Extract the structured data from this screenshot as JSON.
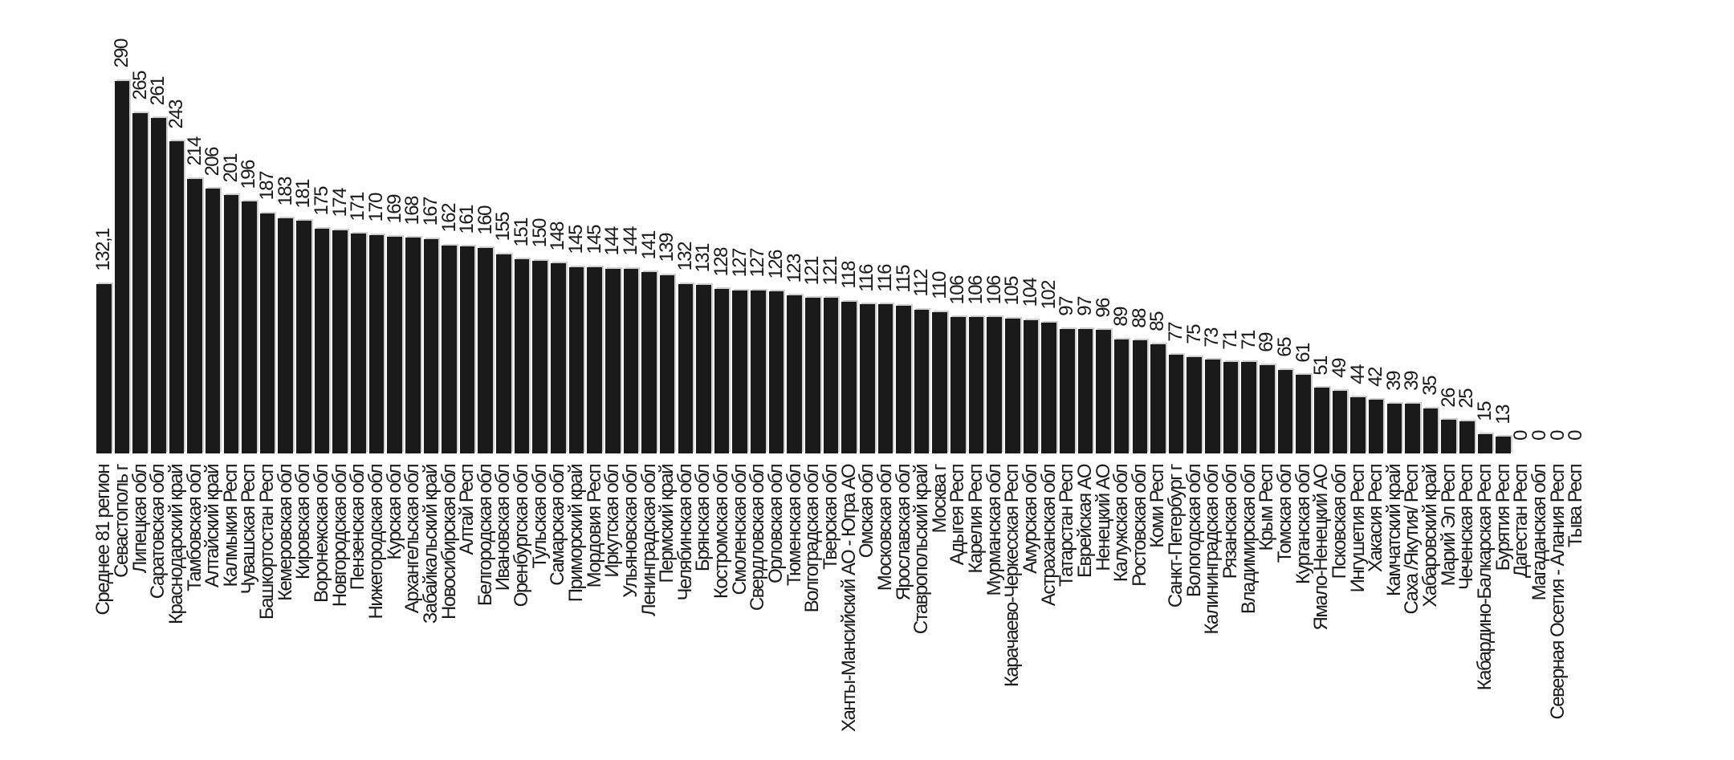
{
  "chart_data": {
    "type": "bar",
    "title": "",
    "xlabel": "",
    "ylabel": "",
    "ylim": [
      0,
      290
    ],
    "grid": false,
    "axes_visible": false,
    "legend": false,
    "bar_color": "#1a1a1a",
    "background_color": "#ffffff",
    "category_label_rotation_deg": 90,
    "value_label_rotation_deg": 90,
    "categories": [
      "Среднее 81 регион",
      "Севастополь г",
      "Липецкая обл",
      "Саратовская обл",
      "Краснодарский край",
      "Тамбовская обл",
      "Алтайский край",
      "Калмыкия Респ",
      "Чувашская Респ",
      "Башкортостан Респ",
      "Кемеровская обл",
      "Кировская обл",
      "Воронежская обл",
      "Новгородская обл",
      "Пензенская обл",
      "Нижегородская обл",
      "Курская обл",
      "Архангельская обл",
      "Забайкальский край",
      "Новосибирская обл",
      "Алтай Респ",
      "Белгородская обл",
      "Ивановская обл",
      "Оренбургская обл",
      "Тульская обл",
      "Самарская обл",
      "Приморский край",
      "Мордовия Респ",
      "Иркутская обл",
      "Ульяновская обл",
      "Ленинградская обл",
      "Пермский край",
      "Челябинская обл",
      "Брянская обл",
      "Костромская обл",
      "Смоленская обл",
      "Свердловская обл",
      "Орловская обл",
      "Тюменская обл",
      "Волгоградская обл",
      "Тверская обл",
      "Ханты-Мансийский АО - Югра АО",
      "Омская обл",
      "Московская обл",
      "Ярославская обл",
      "Ставропольский край",
      "Москва г",
      "Адыгея Респ",
      "Карелия Респ",
      "Мурманская обл",
      "Карачаево-Черкесская Респ",
      "Амурская обл",
      "Астраханская обл",
      "Татарстан Респ",
      "Еврейская АО",
      "Ненецкий АО",
      "Калужская обл",
      "Ростовская обл",
      "Коми Респ",
      "Санкт-Петербург г",
      "Вологодская обл",
      "Калининградская обл",
      "Рязанская обл",
      "Владимирская обл",
      "Крым Респ",
      "Томская обл",
      "Курганская обл",
      "Ямало-Ненецкий АО",
      "Псковская обл",
      "Ингушетия Респ",
      "Хакасия Респ",
      "Камчатский край",
      "Саха /Якутия/ Респ",
      "Хабаровский край",
      "Марий Эл Респ",
      "Чеченская Респ",
      "Кабардино-Балкарская Респ",
      "Бурятия Респ",
      "Дагестан Респ",
      "Магаданская обл",
      "Северная Осетия - Алания Респ",
      "Тыва Респ"
    ],
    "values": [
      132.1,
      290,
      265,
      261,
      243,
      214,
      206,
      201,
      196,
      187,
      183,
      181,
      175,
      174,
      171,
      170,
      169,
      168,
      167,
      162,
      161,
      160,
      155,
      151,
      150,
      148,
      145,
      145,
      144,
      144,
      141,
      139,
      132,
      131,
      128,
      127,
      127,
      126,
      123,
      121,
      121,
      118,
      116,
      116,
      115,
      112,
      110,
      106,
      106,
      106,
      105,
      104,
      102,
      97,
      97,
      96,
      89,
      88,
      85,
      77,
      75,
      73,
      71,
      71,
      69,
      65,
      61,
      51,
      49,
      44,
      42,
      39,
      39,
      35,
      26,
      25,
      15,
      13,
      0,
      0,
      0,
      0
    ],
    "value_labels": [
      "132,1",
      "290",
      "265",
      "261",
      "243",
      "214",
      "206",
      "201",
      "196",
      "187",
      "183",
      "181",
      "175",
      "174",
      "171",
      "170",
      "169",
      "168",
      "167",
      "162",
      "161",
      "160",
      "155",
      "151",
      "150",
      "148",
      "145",
      "145",
      "144",
      "144",
      "141",
      "139",
      "132",
      "131",
      "128",
      "127",
      "127",
      "126",
      "123",
      "121",
      "121",
      "118",
      "116",
      "116",
      "115",
      "112",
      "110",
      "106",
      "106",
      "106",
      "105",
      "104",
      "102",
      "97",
      "97",
      "96",
      "89",
      "88",
      "85",
      "77",
      "75",
      "73",
      "71",
      "71",
      "69",
      "65",
      "61",
      "51",
      "49",
      "44",
      "42",
      "39",
      "39",
      "35",
      "26",
      "25",
      "15",
      "13",
      "0",
      "0",
      "0",
      "0"
    ]
  }
}
